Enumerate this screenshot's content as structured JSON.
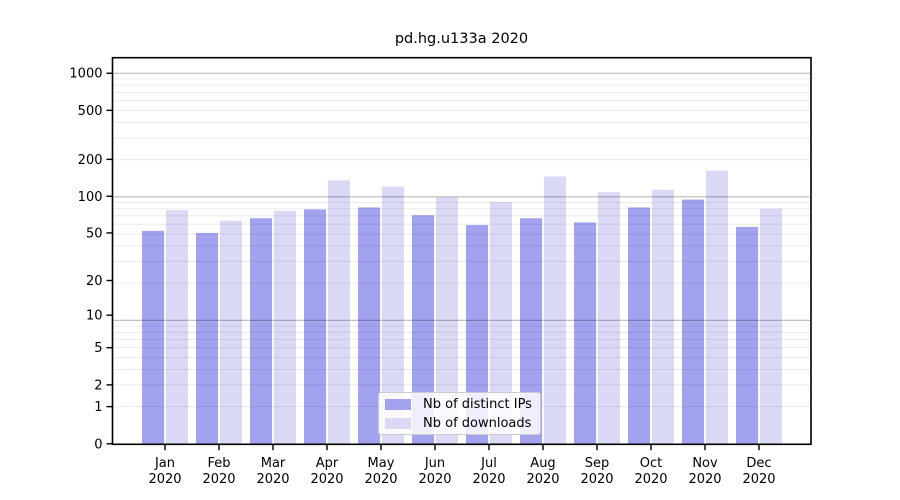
{
  "title": "pd.hg.u133a 2020",
  "chart_data": {
    "type": "bar",
    "title": "pd.hg.u133a 2020",
    "categories": [
      "Jan",
      "Feb",
      "Mar",
      "Apr",
      "May",
      "Jun",
      "Jul",
      "Aug",
      "Sep",
      "Oct",
      "Nov",
      "Dec"
    ],
    "category_year": "2020",
    "series": [
      {
        "name": "Nb of distinct IPs",
        "color": "#a2a2ef",
        "values": [
          52,
          50,
          66,
          78,
          81,
          70,
          58,
          66,
          61,
          81,
          94,
          56
        ]
      },
      {
        "name": "Nb of downloads",
        "color": "#dadaf7",
        "values": [
          77,
          63,
          76,
          135,
          120,
          98,
          90,
          145,
          108,
          113,
          162,
          79
        ]
      }
    ],
    "xlabel": "",
    "ylabel": "",
    "yscale": "log1p",
    "yticks": [
      0,
      1,
      2,
      5,
      10,
      20,
      50,
      100,
      200,
      500,
      1000
    ],
    "ytick_labels": [
      "0",
      "1",
      "2",
      "5",
      "10",
      "20",
      "50",
      "100",
      "200",
      "500",
      "1000"
    ],
    "ylim": [
      0,
      1315
    ],
    "grid": "horizontal minor + decade gridlines drawn above bars",
    "legend_position": "lower center"
  },
  "legend": {
    "items": [
      {
        "label": "Nb of distinct IPs",
        "color": "#a2a2ef"
      },
      {
        "label": "Nb of downloads",
        "color": "#dadaf7"
      }
    ]
  },
  "colors": {
    "distinct_ips": "#a2a2ef",
    "downloads": "#dadaf7",
    "axis": "#000000",
    "grid_decade": "rgba(0,0,0,0.28)",
    "grid_minor": "rgba(0,0,0,0.08)",
    "background": "#ffffff",
    "text": "#000000"
  }
}
